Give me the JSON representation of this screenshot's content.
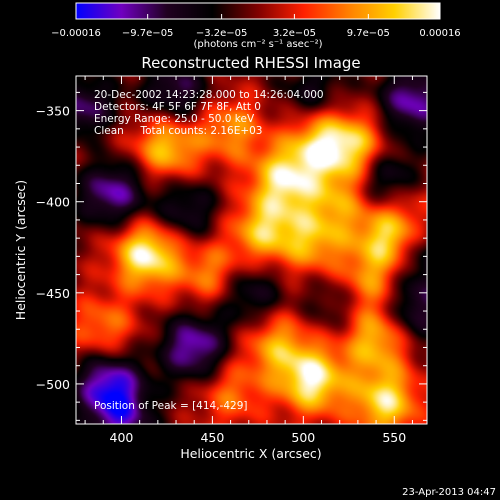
{
  "chart_data": {
    "type": "heatmap",
    "title": "Reconstructed RHESSI Image",
    "xlabel": "Heliocentric X (arcsec)",
    "ylabel": "Heliocentric Y (arcsec)",
    "xlim": [
      375,
      568
    ],
    "ylim": [
      -522,
      -331
    ],
    "x_ticks": [
      400,
      450,
      500,
      550
    ],
    "y_ticks": [
      -350,
      -400,
      -450,
      -500
    ],
    "colorbar": {
      "label": "(photons cm⁻² s⁻¹ asec⁻²)",
      "min": -0.00016,
      "max": 0.00016,
      "tick_labels": [
        "−0.00016",
        "−9.7e−05",
        "−3.2e−05",
        "3.2e−05",
        "9.7e−05",
        "0.00016"
      ],
      "tick_values": [
        -0.00016,
        -9.7e-05,
        -3.2e-05,
        3.2e-05,
        9.7e-05,
        0.00016
      ],
      "colormap": [
        "#0000ff",
        "#7000c0",
        "#200020",
        "#000000",
        "#800000",
        "#ff2000",
        "#ff8000",
        "#ffd000",
        "#ffffff"
      ]
    },
    "annotations": [
      "20-Dec-2002 14:23:28.000 to 14:26:04.000",
      "Detectors: 4F 5F 6F 7F 8F, Att 0",
      "Energy Range: 25.0 - 50.0 keV",
      "Clean     Total counts: 2.16E+03"
    ],
    "peak_label": "Position of Peak = [414,-429]",
    "peak": [
      414,
      -429
    ],
    "sources": [
      {
        "x": 414,
        "y": -429,
        "v": 1.0
      },
      {
        "x": 425,
        "y": -370,
        "v": 0.75
      },
      {
        "x": 490,
        "y": -388,
        "v": 0.85
      },
      {
        "x": 510,
        "y": -368,
        "v": 0.78
      },
      {
        "x": 530,
        "y": -370,
        "v": 0.65
      },
      {
        "x": 460,
        "y": -360,
        "v": 0.55
      },
      {
        "x": 478,
        "y": -416,
        "v": 0.72
      },
      {
        "x": 505,
        "y": -422,
        "v": 0.6
      },
      {
        "x": 548,
        "y": -420,
        "v": 0.85
      },
      {
        "x": 535,
        "y": -445,
        "v": 0.6
      },
      {
        "x": 390,
        "y": -470,
        "v": 0.5
      },
      {
        "x": 450,
        "y": -440,
        "v": 0.55
      },
      {
        "x": 485,
        "y": -478,
        "v": 0.6
      },
      {
        "x": 540,
        "y": -475,
        "v": 0.75
      },
      {
        "x": 505,
        "y": -498,
        "v": 0.95
      },
      {
        "x": 545,
        "y": -510,
        "v": 0.85
      },
      {
        "x": 460,
        "y": -505,
        "v": 0.45
      },
      {
        "x": 555,
        "y": -395,
        "v": 0.5
      },
      {
        "x": 520,
        "y": -400,
        "v": 0.5
      },
      {
        "x": 383,
        "y": -360,
        "v": 0.4
      },
      {
        "x": 430,
        "y": -340,
        "v": -0.6
      },
      {
        "x": 380,
        "y": -352,
        "v": -0.9
      },
      {
        "x": 395,
        "y": -395,
        "v": -0.75
      },
      {
        "x": 393,
        "y": -500,
        "v": -0.85
      },
      {
        "x": 440,
        "y": -480,
        "v": -0.8
      },
      {
        "x": 435,
        "y": -405,
        "v": -0.5
      },
      {
        "x": 560,
        "y": -345,
        "v": -0.75
      },
      {
        "x": 548,
        "y": -389,
        "v": -0.9
      },
      {
        "x": 470,
        "y": -450,
        "v": -0.55
      },
      {
        "x": 520,
        "y": -455,
        "v": -0.4
      },
      {
        "x": 560,
        "y": -460,
        "v": -0.6
      },
      {
        "x": 565,
        "y": -430,
        "v": -0.5
      },
      {
        "x": 400,
        "y": -520,
        "v": -0.6
      },
      {
        "x": 505,
        "y": -340,
        "v": -0.4
      }
    ]
  },
  "footer": {
    "date": "23-Apr-2013 04:47"
  }
}
